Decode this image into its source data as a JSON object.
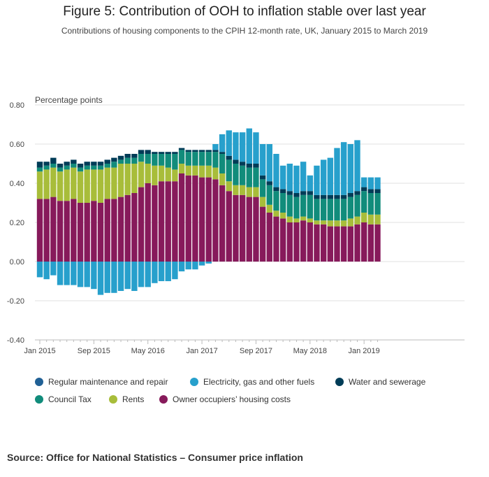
{
  "title": "Figure 5: Contribution of OOH to inflation stable over last year",
  "subtitle": "Contributions of housing components to the CPIH 12-month rate, UK, January 2015 to March 2019",
  "source": "Source: Office for National Statistics – Consumer price inflation",
  "chart_data": {
    "type": "bar",
    "stacked": true,
    "ylabel": "Percentage points",
    "ylim": [
      -0.4,
      0.8
    ],
    "yticks": [
      "0.80",
      "0.60",
      "0.40",
      "0.20",
      "0.00",
      "-0.20",
      "-0.40"
    ],
    "xtick_labels": [
      {
        "index": 0,
        "label": "Jan 2015"
      },
      {
        "index": 8,
        "label": "Sep 2015"
      },
      {
        "index": 16,
        "label": "May 2016"
      },
      {
        "index": 24,
        "label": "Jan 2017"
      },
      {
        "index": 32,
        "label": "Sep 2017"
      },
      {
        "index": 40,
        "label": "May 2018"
      },
      {
        "index": 48,
        "label": "Jan 2019"
      }
    ],
    "grid": true,
    "legend_position": "bottom",
    "series": [
      {
        "key": "ooh",
        "name": "Owner occupiers’ housing costs",
        "color": "#871a5b",
        "values": [
          0.32,
          0.32,
          0.33,
          0.31,
          0.31,
          0.32,
          0.3,
          0.3,
          0.31,
          0.3,
          0.32,
          0.32,
          0.33,
          0.34,
          0.35,
          0.38,
          0.4,
          0.39,
          0.41,
          0.41,
          0.41,
          0.45,
          0.44,
          0.44,
          0.43,
          0.43,
          0.42,
          0.39,
          0.36,
          0.34,
          0.34,
          0.33,
          0.33,
          0.28,
          0.25,
          0.23,
          0.22,
          0.2,
          0.2,
          0.21,
          0.2,
          0.19,
          0.19,
          0.18,
          0.18,
          0.18,
          0.18,
          0.19,
          0.2,
          0.19,
          0.19
        ]
      },
      {
        "key": "rents",
        "name": "Rents",
        "color": "#a8bd3a",
        "values": [
          0.14,
          0.15,
          0.15,
          0.15,
          0.16,
          0.16,
          0.16,
          0.17,
          0.16,
          0.17,
          0.16,
          0.16,
          0.17,
          0.16,
          0.15,
          0.13,
          0.1,
          0.1,
          0.08,
          0.07,
          0.06,
          0.05,
          0.05,
          0.05,
          0.06,
          0.06,
          0.06,
          0.06,
          0.05,
          0.05,
          0.05,
          0.05,
          0.05,
          0.05,
          0.04,
          0.03,
          0.03,
          0.03,
          0.02,
          0.02,
          0.02,
          0.02,
          0.02,
          0.03,
          0.03,
          0.03,
          0.04,
          0.04,
          0.05,
          0.05,
          0.05
        ]
      },
      {
        "key": "council",
        "name": "Council Tax",
        "color": "#118c7b",
        "values": [
          0.02,
          0.02,
          0.02,
          0.02,
          0.02,
          0.02,
          0.02,
          0.02,
          0.02,
          0.02,
          0.02,
          0.03,
          0.02,
          0.03,
          0.03,
          0.04,
          0.05,
          0.06,
          0.06,
          0.07,
          0.08,
          0.07,
          0.07,
          0.07,
          0.07,
          0.07,
          0.08,
          0.1,
          0.11,
          0.11,
          0.1,
          0.1,
          0.1,
          0.09,
          0.1,
          0.1,
          0.1,
          0.11,
          0.11,
          0.11,
          0.12,
          0.11,
          0.11,
          0.11,
          0.11,
          0.11,
          0.11,
          0.11,
          0.11,
          0.11,
          0.11
        ]
      },
      {
        "key": "water",
        "name": "Water and sewerage",
        "color": "#003c57",
        "values": [
          0.03,
          0.02,
          0.03,
          0.02,
          0.02,
          0.02,
          0.02,
          0.02,
          0.02,
          0.02,
          0.02,
          0.02,
          0.02,
          0.02,
          0.02,
          0.02,
          0.02,
          0.01,
          0.01,
          0.01,
          0.01,
          0.01,
          0.01,
          0.01,
          0.01,
          0.01,
          0.01,
          0.01,
          0.02,
          0.02,
          0.02,
          0.02,
          0.02,
          0.02,
          0.02,
          0.02,
          0.02,
          0.02,
          0.02,
          0.02,
          0.02,
          0.02,
          0.02,
          0.02,
          0.02,
          0.02,
          0.02,
          0.02,
          0.02,
          0.02,
          0.02
        ]
      },
      {
        "key": "maint",
        "name": "Regular maintenance and repair",
        "color": "#206095",
        "values": [
          0,
          0,
          0,
          0,
          0,
          0,
          0,
          0,
          0,
          0,
          0,
          0,
          0,
          0,
          0,
          0,
          0,
          0,
          0,
          0,
          0,
          0,
          0,
          0,
          0,
          0,
          0,
          0,
          0,
          0,
          0,
          0,
          0,
          0,
          0,
          0,
          0,
          0,
          0,
          0,
          0,
          0,
          0,
          0,
          0,
          0,
          0,
          0,
          0,
          0,
          0
        ]
      },
      {
        "key": "elec",
        "name": "Electricity, gas and other fuels",
        "color": "#27a0cc",
        "values": [
          -0.08,
          -0.09,
          -0.07,
          -0.12,
          -0.12,
          -0.12,
          -0.13,
          -0.13,
          -0.14,
          -0.17,
          -0.16,
          -0.16,
          -0.15,
          -0.14,
          -0.15,
          -0.13,
          -0.13,
          -0.11,
          -0.1,
          -0.1,
          -0.09,
          -0.05,
          -0.04,
          -0.04,
          -0.02,
          -0.01,
          0.03,
          0.09,
          0.13,
          0.14,
          0.15,
          0.18,
          0.16,
          0.16,
          0.19,
          0.17,
          0.12,
          0.14,
          0.14,
          0.15,
          0.08,
          0.15,
          0.18,
          0.19,
          0.24,
          0.27,
          0.25,
          0.26,
          0.05,
          0.06,
          0.06
        ]
      }
    ]
  }
}
